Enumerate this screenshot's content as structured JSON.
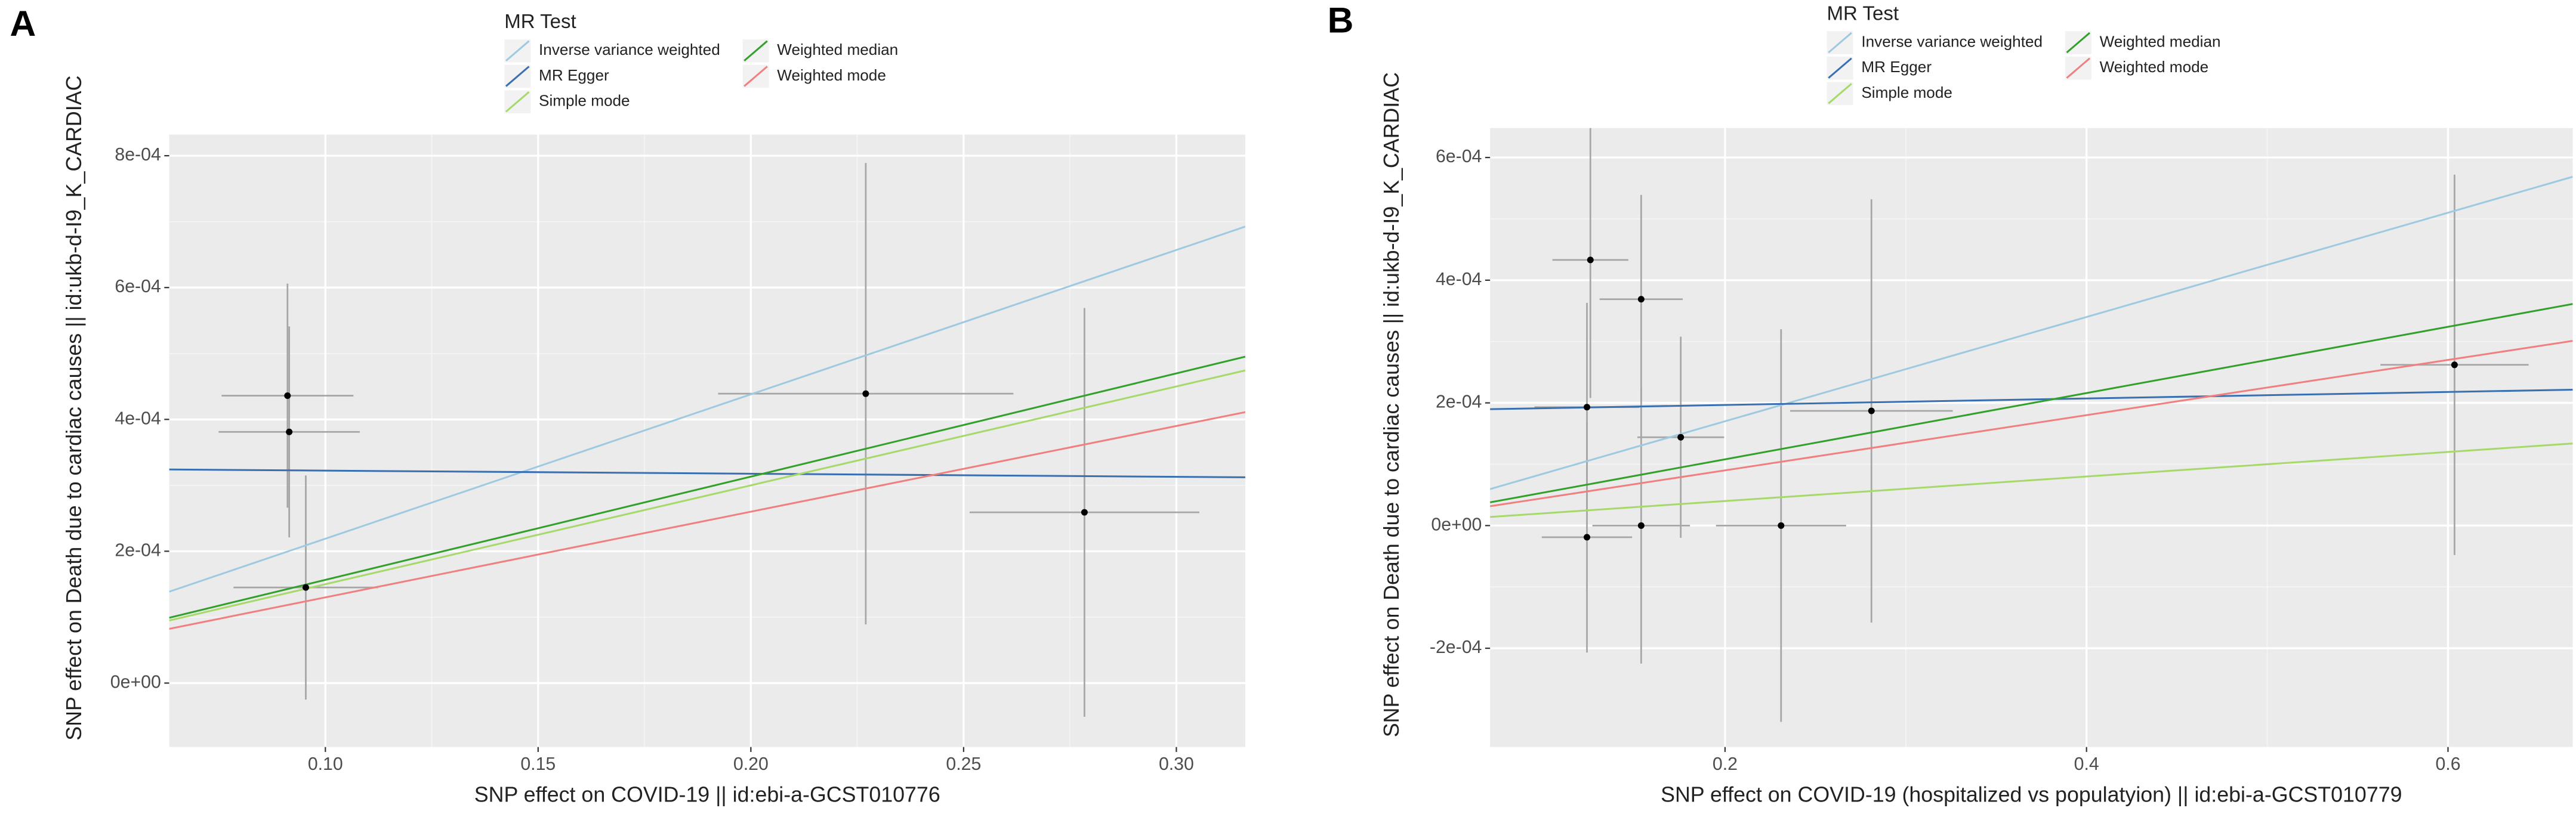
{
  "chart_data": [
    {
      "type": "scatter",
      "title": "A",
      "x_label": "SNP effect on COVID-19 || id:ebi-a-GCST010776",
      "y_label": "SNP effect on Death due to cardiac causes || id:ukb-d-I9_K_CARDIAC",
      "legend_title": "MR Test",
      "xlim": [
        0.0633,
        0.3162
      ],
      "xticks": [
        {
          "value": 0.1,
          "label": "0.10"
        },
        0.15,
        {
          "value": 0.2,
          "label": "0.20"
        },
        0.25,
        {
          "value": 0.3,
          "label": "0.30"
        }
      ],
      "ylim": [
        -9.7e-05,
        0.000832
      ],
      "yticks": [
        {
          "value": 0,
          "label": "0e+00"
        },
        {
          "value": 0.0002,
          "label": "2e-04"
        },
        {
          "value": 0.0004,
          "label": "4e-04"
        },
        {
          "value": 0.0006,
          "label": "6e-04"
        },
        {
          "value": 0.0008,
          "label": "8e-04"
        }
      ],
      "grid": true,
      "points": {
        "x": [
          0.0911,
          0.0915,
          0.0954,
          0.227,
          0.2784
        ],
        "y": [
          0.000436,
          0.000381,
          0.000145,
          0.000439,
          0.000259
        ],
        "xerr": [
          0.0155,
          0.0166,
          0.017,
          0.0347,
          0.027
        ],
        "yerr": [
          0.00017,
          0.00016,
          0.00017,
          0.00035,
          0.00031
        ]
      },
      "series": [
        {
          "name": "Inverse variance weighted",
          "color": "#9ecae1",
          "slope": 0.00219,
          "intercept": 0
        },
        {
          "name": "MR Egger",
          "color": "#3a6fb0",
          "slope": -4.7e-05,
          "intercept": 0.000327
        },
        {
          "name": "Simple mode",
          "color": "#a6d96a",
          "slope": 0.0015,
          "intercept": 0
        },
        {
          "name": "Weighted median",
          "color": "#33a02c",
          "slope": 0.001566,
          "intercept": 0
        },
        {
          "name": "Weighted mode",
          "color": "#f08080",
          "slope": 0.0013,
          "intercept": 0
        }
      ]
    },
    {
      "type": "scatter",
      "title": "B",
      "x_label": "SNP effect on COVID-19 (hospitalized vs populatyion) || id:ebi-a-GCST010779",
      "y_label": "SNP effect on Death due to cardiac causes || id:ukb-d-I9_K_CARDIAC",
      "legend_title": "MR Test",
      "xlim": [
        0.07,
        0.669
      ],
      "xticks": [
        0.2,
        0.4,
        0.6
      ],
      "ylim": [
        -0.000361,
        0.000648
      ],
      "yticks": [
        {
          "value": -0.0002,
          "label": "-2e-04"
        },
        {
          "value": 0,
          "label": "0e+00"
        },
        {
          "value": 0.0002,
          "label": "2e-04"
        },
        {
          "value": 0.0004,
          "label": "4e-04"
        },
        {
          "value": 0.0006,
          "label": "6e-04"
        }
      ],
      "grid": true,
      "points": {
        "x": [
          0.1255,
          0.1236,
          0.1236,
          0.1536,
          0.1536,
          0.1755,
          0.231,
          0.281,
          0.6036
        ],
        "y": [
          0.000433,
          0.000193,
          -1.9e-05,
          0.000369,
          0,
          0.000144,
          0,
          0.000187,
          0.000262
        ],
        "xerr": [
          0.021,
          0.029,
          0.025,
          0.023,
          0.027,
          0.024,
          0.036,
          0.045,
          0.041
        ],
        "yerr": [
          0.000225,
          0.00017,
          0.000188,
          0.00017,
          0.000225,
          0.000164,
          0.00032,
          0.000345,
          0.00031
        ]
      },
      "series": [
        {
          "name": "Inverse variance weighted",
          "color": "#9ecae1",
          "slope": 0.00085,
          "intercept": 0
        },
        {
          "name": "MR Egger",
          "color": "#3a6fb0",
          "slope": 5.3e-05,
          "intercept": 0.000186
        },
        {
          "name": "Simple mode",
          "color": "#a6d96a",
          "slope": 0.0002,
          "intercept": 0
        },
        {
          "name": "Weighted median",
          "color": "#33a02c",
          "slope": 0.00054,
          "intercept": 0
        },
        {
          "name": "Weighted mode",
          "color": "#f08080",
          "slope": 0.00045,
          "intercept": 0
        }
      ]
    }
  ]
}
